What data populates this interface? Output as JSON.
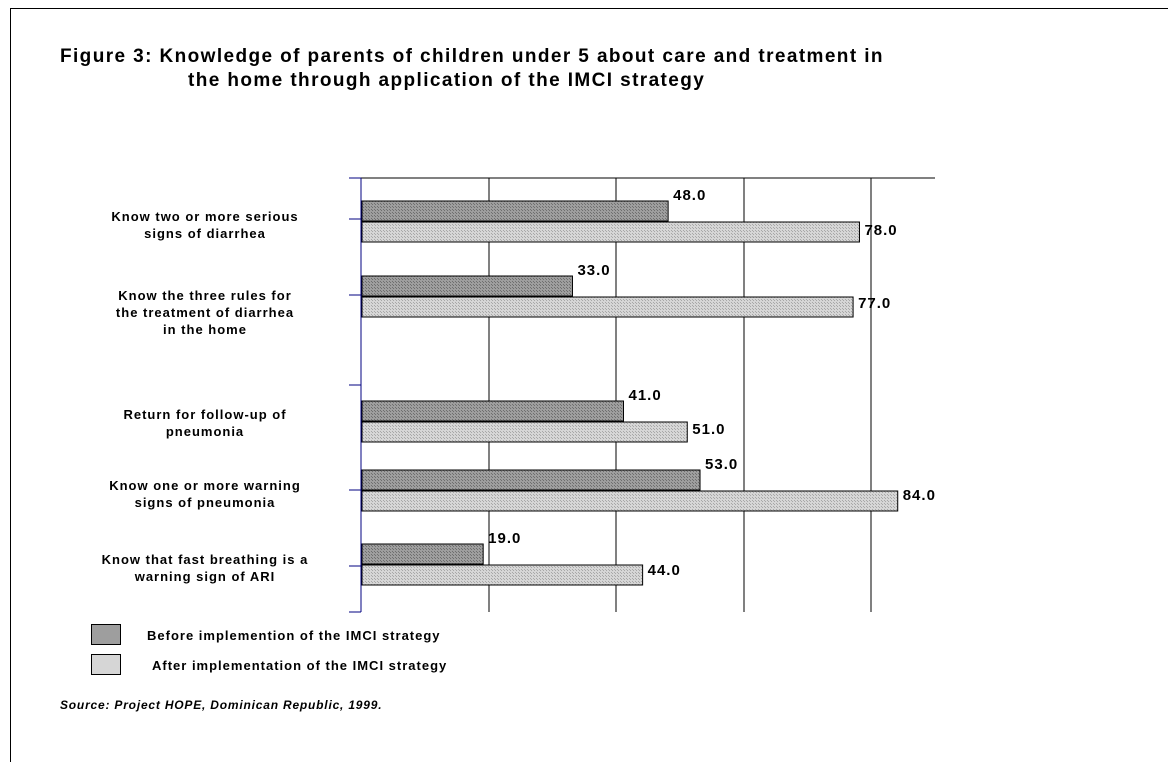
{
  "title_line1": "Figure 3: Knowledge of parents of children under 5 about care and treatment in",
  "title_line2": "the home through application of the IMCI strategy",
  "source": "Source: Project  HOPE, Dominican Republic, 1999.",
  "colors": {
    "before": "#9e9e9e",
    "after": "#d6d6d6",
    "axis": "#000080",
    "grid": "#000000"
  },
  "chart_data": {
    "type": "bar",
    "orientation": "horizontal",
    "title": "Figure 3: Knowledge of parents of children under 5 about care and treatment in the home through application of the IMCI strategy",
    "categories": [
      [
        "Know two or more serious",
        "signs of diarrhea"
      ],
      [
        "Know the three rules for",
        "the treatment of diarrhea",
        "in the home"
      ],
      [
        "Return for follow-up of",
        "pneumonia"
      ],
      [
        "Know one or more warning",
        "signs of pneumonia"
      ],
      [
        "Know that fast breathing is a",
        "warning sign of ARI"
      ]
    ],
    "series": [
      {
        "name": "Before implemention of the IMCI strategy",
        "values": [
          48.0,
          33.0,
          41.0,
          53.0,
          19.0
        ],
        "labels": [
          "48.0",
          "33.0",
          "41.0",
          "53.0",
          "19.0"
        ]
      },
      {
        "name": "After implementation of the IMCI strategy",
        "values": [
          78.0,
          77.0,
          51.0,
          84.0,
          44.0
        ],
        "labels": [
          "78.0",
          "77.0",
          "51.0",
          "84.0",
          "44.0"
        ]
      }
    ],
    "xlim": [
      0,
      90
    ],
    "grid": true,
    "legend_position": "bottom-left"
  }
}
